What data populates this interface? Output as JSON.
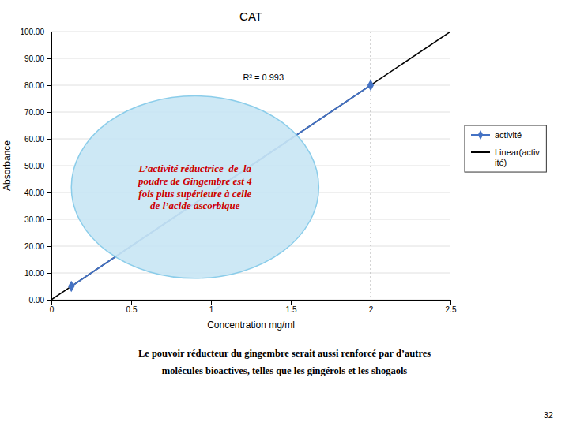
{
  "chart_data": {
    "type": "line",
    "title": "CAT",
    "xlabel": "Concentration mg/ml",
    "ylabel": "Absorbance",
    "xlim": [
      0,
      2.5
    ],
    "ylim": [
      0,
      100
    ],
    "xticks": [
      0,
      0.5,
      1,
      1.5,
      2,
      2.5
    ],
    "yticks": [
      {
        "value": 0,
        "label": "0.00"
      },
      {
        "value": 10,
        "label": "10.00"
      },
      {
        "value": 20,
        "label": "20.00"
      },
      {
        "value": 30,
        "label": "30.00"
      },
      {
        "value": 40,
        "label": "40.00"
      },
      {
        "value": 50,
        "label": "50.00"
      },
      {
        "value": 60,
        "label": "60.00"
      },
      {
        "value": 70,
        "label": "70.00"
      },
      {
        "value": 80,
        "label": "80.00"
      },
      {
        "value": 90,
        "label": "90.00"
      },
      {
        "value": 100,
        "label": "100.00"
      }
    ],
    "grid": true,
    "legend": "right",
    "series": [
      {
        "name": "activité",
        "type": "line",
        "color": "#4472C4",
        "marker": "diamond",
        "x": [
          0.125,
          2.0
        ],
        "values": [
          5.0,
          80.0
        ]
      },
      {
        "name": "Linear(activ\nité)",
        "type": "line",
        "color": "#000000",
        "x": [
          0,
          2.5
        ],
        "values": [
          0,
          100
        ]
      }
    ],
    "reference_lines": [
      {
        "x": 2.0,
        "color": "#AAAAAA",
        "line_style": "dotted"
      }
    ],
    "annotations": [
      {
        "text": "L’activité réductrice  de  la\npoudre de Gingembre est 4\nfois plus supérieure à celle\nde l’acide ascorbique",
        "x": 0.9,
        "y": 42,
        "color": "#CC0000",
        "ellipse": {
          "width": 1.55,
          "height": 68,
          "fill": "#C8E6F5",
          "edge": "#7FC8E8"
        }
      },
      {
        "text": "R² = 0.993",
        "x": 1.2,
        "y": 83
      }
    ],
    "footnotes": [
      "Le pouvoir réducteur du gingembre serait aussi renforcé par d’autres",
      "molécules bioactives, telles que les gingérols et les shogaols"
    ],
    "page_number": "32"
  }
}
